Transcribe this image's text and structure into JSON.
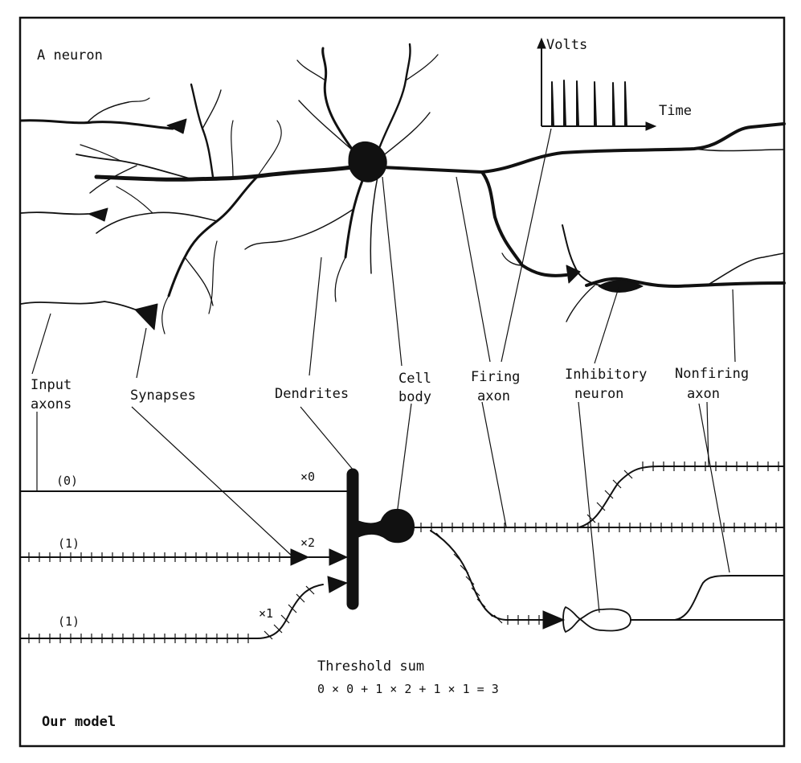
{
  "top_section": {
    "title": "A neuron",
    "graph": {
      "y_label": "Volts",
      "x_label": "Time"
    }
  },
  "labels": {
    "input_axons": [
      "Input",
      "axons"
    ],
    "synapses": "Synapses",
    "dendrites": "Dendrites",
    "cell_body": [
      "Cell",
      "body"
    ],
    "firing_axon": [
      "Firing",
      "axon"
    ],
    "inhibitory_neuron": [
      "Inhibitory",
      "neuron"
    ],
    "nonfiring_axon": [
      "Nonfiring",
      "axon"
    ]
  },
  "model": {
    "title": "Our model",
    "inputs": [
      {
        "value": "(0)",
        "weight": "×0"
      },
      {
        "value": "(1)",
        "weight": "×2"
      },
      {
        "value": "(1)",
        "weight": "×1"
      }
    ],
    "threshold_title": "Threshold sum",
    "threshold_equation": "0 × 0 + 1 × 2 + 1 × 1 = 3"
  }
}
